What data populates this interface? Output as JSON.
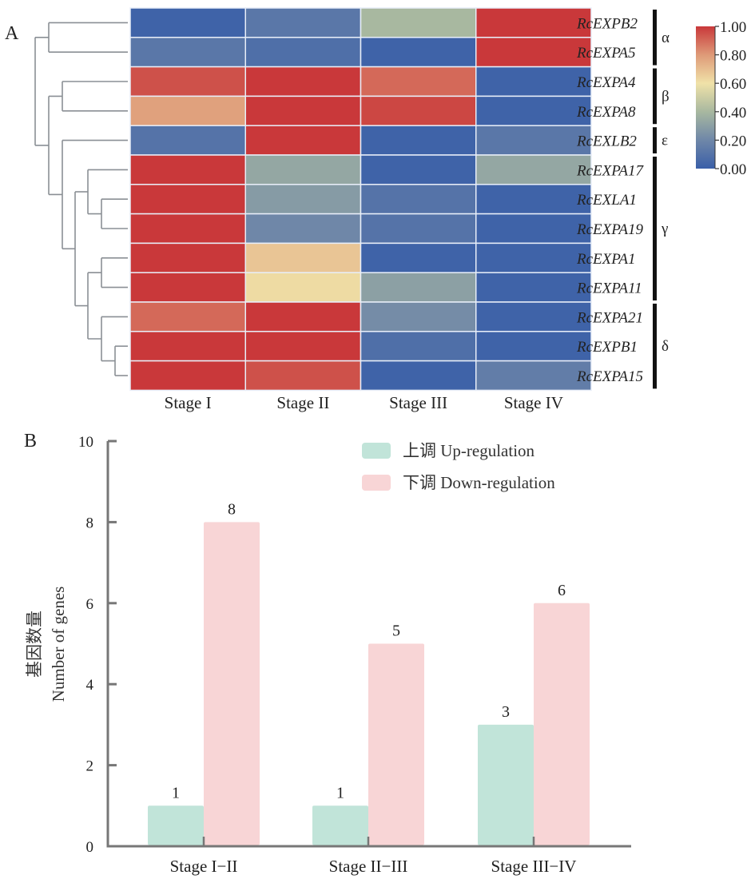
{
  "chart_data": [
    {
      "type": "heatmap",
      "panel_label": "A",
      "columns": [
        "Stage I",
        "Stage II",
        "Stage III",
        "Stage IV"
      ],
      "rows": [
        "RcEXPB2",
        "RcEXPA5",
        "RcEXPA4",
        "RcEXPA8",
        "RcEXLB2",
        "RcEXPA17",
        "RcEXLA1",
        "RcEXPA19",
        "RcEXPA1",
        "RcEXPA11",
        "RcEXPA21",
        "RcEXPB1",
        "RcEXPA15"
      ],
      "values": [
        [
          0.02,
          0.12,
          0.4,
          1.0
        ],
        [
          0.12,
          0.08,
          0.02,
          1.0
        ],
        [
          0.95,
          1.0,
          0.9,
          0.02
        ],
        [
          0.78,
          1.0,
          0.97,
          0.02
        ],
        [
          0.1,
          1.0,
          0.02,
          0.12
        ],
        [
          1.0,
          0.33,
          0.02,
          0.33
        ],
        [
          1.0,
          0.28,
          0.1,
          0.02
        ],
        [
          1.0,
          0.2,
          0.1,
          0.02
        ],
        [
          1.0,
          0.68,
          0.02,
          0.02
        ],
        [
          1.0,
          0.62,
          0.3,
          0.02
        ],
        [
          0.9,
          1.0,
          0.22,
          0.02
        ],
        [
          1.0,
          1.0,
          0.08,
          0.02
        ],
        [
          1.0,
          0.95,
          0.02,
          0.15
        ]
      ],
      "groups": [
        {
          "label": "α",
          "start_row": 0,
          "end_row": 1
        },
        {
          "label": "β",
          "start_row": 2,
          "end_row": 3
        },
        {
          "label": "ε",
          "start_row": 4,
          "end_row": 4
        },
        {
          "label": "γ",
          "start_row": 5,
          "end_row": 9
        },
        {
          "label": "δ",
          "start_row": 10,
          "end_row": 12
        }
      ],
      "dendrogram": true,
      "colorbar": {
        "min": 0,
        "max": 1,
        "ticks": [
          "0.00",
          "0.20",
          "0.40",
          "0.60",
          "0.80",
          "1.00"
        ],
        "colors": [
          "#3a5fa8",
          "#6f87a8",
          "#a8b8a0",
          "#f0e2a8",
          "#de9a78",
          "#c9383a"
        ]
      }
    },
    {
      "type": "bar",
      "panel_label": "B",
      "categories": [
        "Stage I−II",
        "Stage II−III",
        "Stage III−IV"
      ],
      "series": [
        {
          "name": "上调 Up-regulation",
          "values": [
            1,
            1,
            3
          ],
          "color": "#c1e4d9"
        },
        {
          "name": "下调 Down-regulation",
          "values": [
            8,
            5,
            6
          ],
          "color": "#f8d5d6"
        }
      ],
      "ylabel_cn": "基因数量",
      "ylabel_en": "Number of genes",
      "xlabel": "",
      "ylim": [
        0,
        10
      ],
      "yticks": [
        "0",
        "2",
        "4",
        "6",
        "8",
        "10"
      ],
      "legend_position": "top-center",
      "grid": false
    }
  ]
}
